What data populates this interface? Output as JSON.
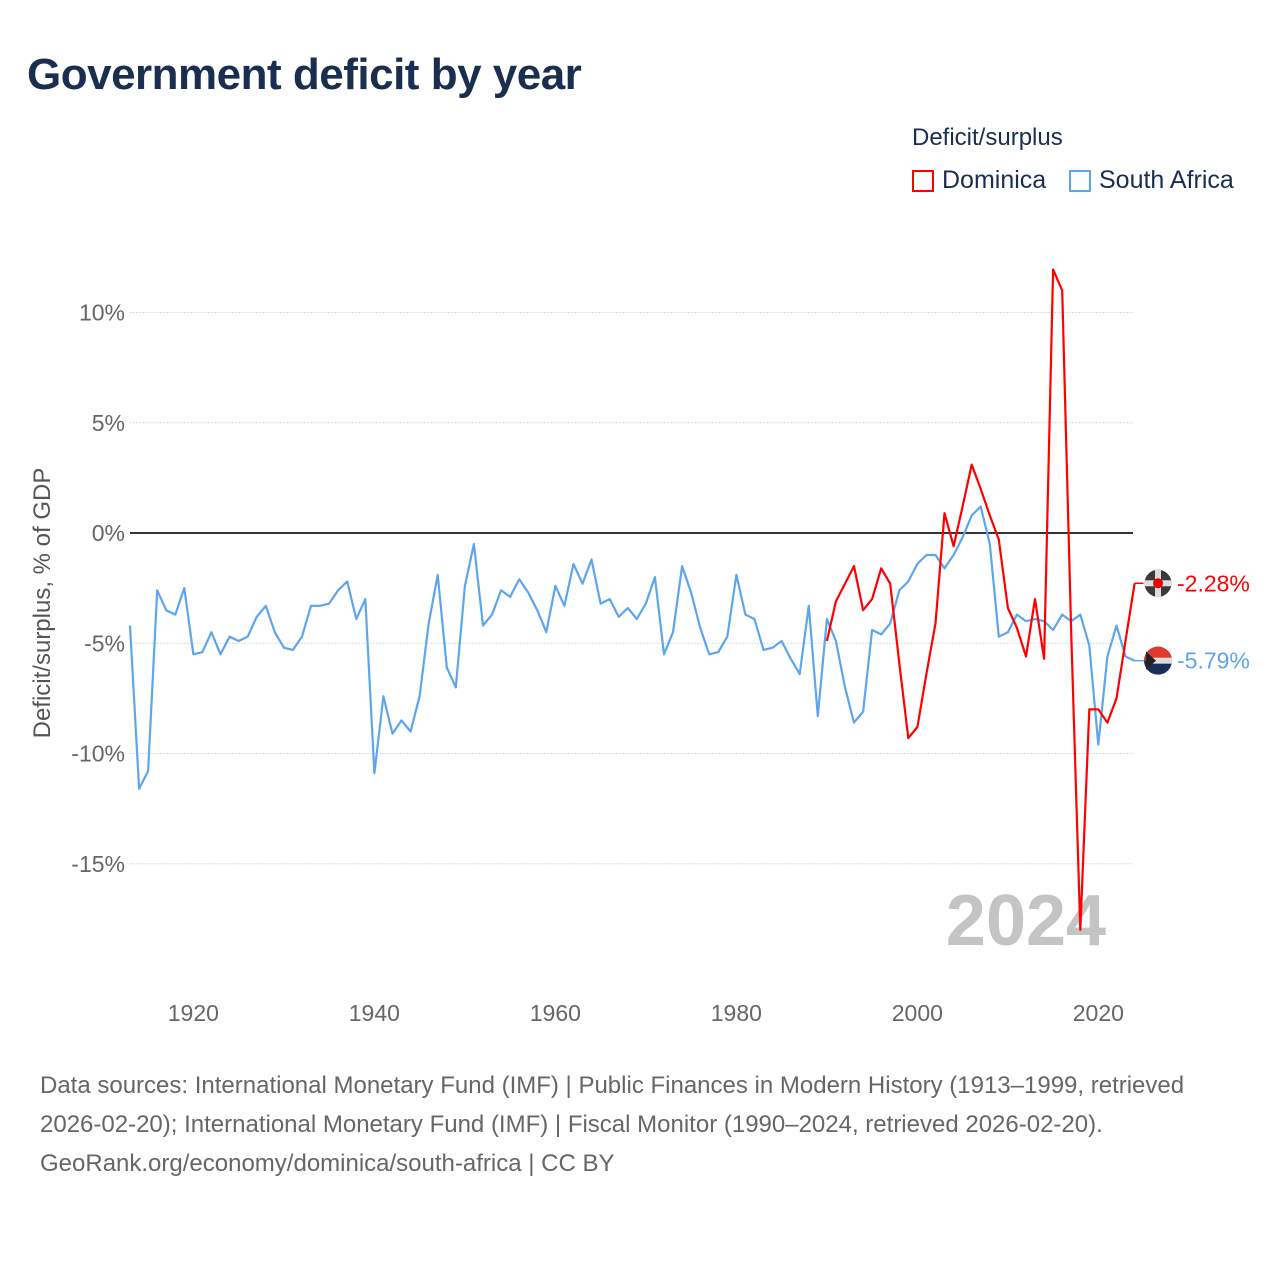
{
  "title": "Government deficit by year",
  "legend": {
    "title": "Deficit/surplus",
    "items": [
      {
        "name": "Dominica",
        "color": "#ff0000"
      },
      {
        "name": "South Africa",
        "color": "#5da5ec"
      }
    ]
  },
  "watermark_year": "2024",
  "footer": {
    "sources": "Data sources: International Monetary Fund (IMF) | Public Finances in Modern History (1913–1999, retrieved 2026-02-20); International Monetary Fund (IMF) | Fiscal Monitor (1990–2024, retrieved 2026-02-20).",
    "credit": "GeoRank.org/economy/dominica/south-africa | CC BY"
  },
  "chart_data": {
    "type": "line",
    "title": "Government deficit by year",
    "xlabel": "",
    "ylabel": "Deficit/surplus, % of GDP",
    "xlim": [
      1913,
      2024
    ],
    "ylim": [
      -19,
      13
    ],
    "x_ticks": [
      1920,
      1940,
      1960,
      1980,
      2000,
      2020
    ],
    "y_ticks": [
      10,
      5,
      0,
      -5,
      -10,
      -15
    ],
    "y_tick_labels": [
      "10%",
      "5%",
      "0%",
      "-5%",
      "-10%",
      "-15%"
    ],
    "grid": true,
    "legend_position": "top-right",
    "series": [
      {
        "name": "South Africa",
        "color": "#5da5ec",
        "end_label": "-5.79%",
        "start_year": 1913,
        "values": [
          -4.2,
          -11.6,
          -10.8,
          -2.6,
          -3.5,
          -3.7,
          -2.5,
          -5.5,
          -5.4,
          -4.5,
          -5.5,
          -4.7,
          -4.9,
          -4.7,
          -3.8,
          -3.3,
          -4.5,
          -5.2,
          -5.3,
          -4.7,
          -3.3,
          -3.3,
          -3.2,
          -2.6,
          -2.2,
          -3.9,
          -3.0,
          -10.9,
          -7.4,
          -9.1,
          -8.5,
          -9.0,
          -7.4,
          -4.1,
          -1.9,
          -6.1,
          -7.0,
          -2.4,
          -0.5,
          -4.2,
          -3.7,
          -2.6,
          -2.9,
          -2.1,
          -2.7,
          -3.5,
          -4.5,
          -2.4,
          -3.3,
          -1.4,
          -2.3,
          -1.2,
          -3.2,
          -3.0,
          -3.8,
          -3.4,
          -3.9,
          -3.2,
          -2.0,
          -5.5,
          -4.5,
          -1.5,
          -2.7,
          -4.3,
          -5.5,
          -5.4,
          -4.7,
          -1.9,
          -3.7,
          -3.9,
          -5.3,
          -5.2,
          -4.9,
          -5.7,
          -6.4,
          -3.3,
          -8.3,
          -3.9,
          -4.9,
          -7.0,
          -8.6,
          -8.1,
          -4.4,
          -4.6,
          -4.1,
          -2.6,
          -2.2,
          -1.4,
          -1.0,
          -1.0,
          -1.6,
          -1.0,
          -0.2,
          0.8,
          1.2,
          -0.5,
          -4.7,
          -4.5,
          -3.7,
          -4.0,
          -3.9,
          -4.0,
          -4.4,
          -3.7,
          -4.0,
          -3.7,
          -5.1,
          -9.6,
          -5.6,
          -4.2,
          -5.6,
          -5.79
        ]
      },
      {
        "name": "Dominica",
        "color": "#ff0000",
        "end_label": "-2.28%",
        "start_year": 1990,
        "values": [
          -4.9,
          -3.1,
          -2.3,
          -1.5,
          -3.5,
          -3.0,
          -1.6,
          -2.3,
          -5.9,
          -9.3,
          -8.8,
          -6.4,
          -4.1,
          0.9,
          -0.6,
          1.2,
          3.1,
          2.0,
          0.8,
          -0.3,
          -3.4,
          -4.3,
          -5.6,
          -3.0,
          -5.7,
          11.95,
          11.0,
          -4.5,
          -18.0,
          -8.0,
          -8.0,
          -8.6,
          -7.5,
          -4.9,
          -2.28
        ]
      }
    ]
  }
}
